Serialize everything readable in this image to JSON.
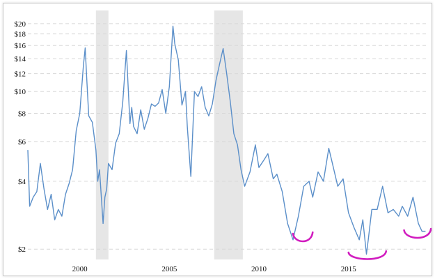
{
  "chart_data": {
    "type": "line",
    "title": "",
    "xlabel": "",
    "ylabel": "",
    "y_scale": "log",
    "ylim": [
      1.8,
      21
    ],
    "xlim": [
      1997.1,
      2019.4
    ],
    "y_ticks": [
      2,
      4,
      6,
      8,
      10,
      12,
      14,
      16,
      18,
      20
    ],
    "y_tick_labels": [
      "$2",
      "$4",
      "$6",
      "$8",
      "$10",
      "$12",
      "$14",
      "$16",
      "$18",
      "$20"
    ],
    "x_ticks": [
      2000,
      2005,
      2010,
      2015
    ],
    "x_tick_labels": [
      "2000",
      "2005",
      "2010",
      "2015"
    ],
    "grid": "horizontal dashed",
    "legend": "none",
    "line_color": "#5b8fc9",
    "recession_color": "#e6e6e6",
    "annotation_color": "#d11cbf",
    "recession_bands": [
      {
        "start": 2000.9,
        "end": 2001.6
      },
      {
        "start": 2007.5,
        "end": 2009.1
      }
    ],
    "annotations": [
      {
        "type": "hand-drawn-underline",
        "x_start": 2011.9,
        "x_end": 2013.0
      },
      {
        "type": "hand-drawn-underline",
        "x_start": 2015.0,
        "x_end": 2017.1
      },
      {
        "type": "hand-drawn-underline",
        "x_start": 2018.1,
        "x_end": 2019.6
      }
    ],
    "series": [
      {
        "x": [
          1997.1,
          1997.2,
          1997.4,
          1997.6,
          1997.8,
          1998.0,
          1998.2,
          1998.4,
          1998.6,
          1998.8,
          1999.0,
          1999.2,
          1999.4,
          1999.6,
          1999.8,
          2000.0,
          2000.2,
          2000.3,
          2000.4,
          2000.5,
          2000.7,
          2000.9,
          2001.0,
          2001.1,
          2001.3,
          2001.4,
          2001.5,
          2001.6,
          2001.8,
          2002.0,
          2002.2,
          2002.4,
          2002.6,
          2002.8,
          2002.9,
          2003.0,
          2003.2,
          2003.4,
          2003.6,
          2003.8,
          2004.0,
          2004.2,
          2004.4,
          2004.6,
          2004.8,
          2005.0,
          2005.2,
          2005.3,
          2005.5,
          2005.7,
          2005.9,
          2006.0,
          2006.2,
          2006.4,
          2006.6,
          2006.8,
          2007.0,
          2007.2,
          2007.4,
          2007.6,
          2007.8,
          2008.0,
          2008.2,
          2008.4,
          2008.6,
          2008.8,
          2009.0,
          2009.2,
          2009.5,
          2009.8,
          2010.0,
          2010.3,
          2010.5,
          2010.8,
          2011.0,
          2011.3,
          2011.6,
          2011.9,
          2012.2,
          2012.5,
          2012.8,
          2013.0,
          2013.3,
          2013.6,
          2013.9,
          2014.1,
          2014.4,
          2014.7,
          2015.0,
          2015.3,
          2015.6,
          2015.8,
          2016.0,
          2016.1,
          2016.3,
          2016.6,
          2016.9,
          2017.2,
          2017.5,
          2017.8,
          2018.0,
          2018.3,
          2018.6,
          2018.9,
          2019.1,
          2019.3
        ],
        "y": [
          5.5,
          3.1,
          3.4,
          3.6,
          4.8,
          3.7,
          3.0,
          3.5,
          2.7,
          3.0,
          2.8,
          3.5,
          3.9,
          4.5,
          6.7,
          8.0,
          13.0,
          15.6,
          11.0,
          7.8,
          7.3,
          5.5,
          4.0,
          4.5,
          2.6,
          3.4,
          3.7,
          4.8,
          4.5,
          5.9,
          6.5,
          9.0,
          15.2,
          7.2,
          8.5,
          7.0,
          6.5,
          8.3,
          6.8,
          7.6,
          8.8,
          8.6,
          8.9,
          10.2,
          8.0,
          10.5,
          19.5,
          16.3,
          13.8,
          8.7,
          10.0,
          7.0,
          4.2,
          10.0,
          9.5,
          10.5,
          8.5,
          7.8,
          8.8,
          11.2,
          13.2,
          15.5,
          12.0,
          9.0,
          6.5,
          5.8,
          4.5,
          3.8,
          4.4,
          5.8,
          4.6,
          5.0,
          5.3,
          4.1,
          4.3,
          3.6,
          2.6,
          2.2,
          2.8,
          3.8,
          4.0,
          3.4,
          4.4,
          4.0,
          5.6,
          4.8,
          3.8,
          4.1,
          2.9,
          2.5,
          2.2,
          2.7,
          1.9,
          2.2,
          3.0,
          3.0,
          3.8,
          2.9,
          3.0,
          2.8,
          3.1,
          2.8,
          3.4,
          2.6,
          2.4,
          2.4
        ]
      }
    ]
  }
}
